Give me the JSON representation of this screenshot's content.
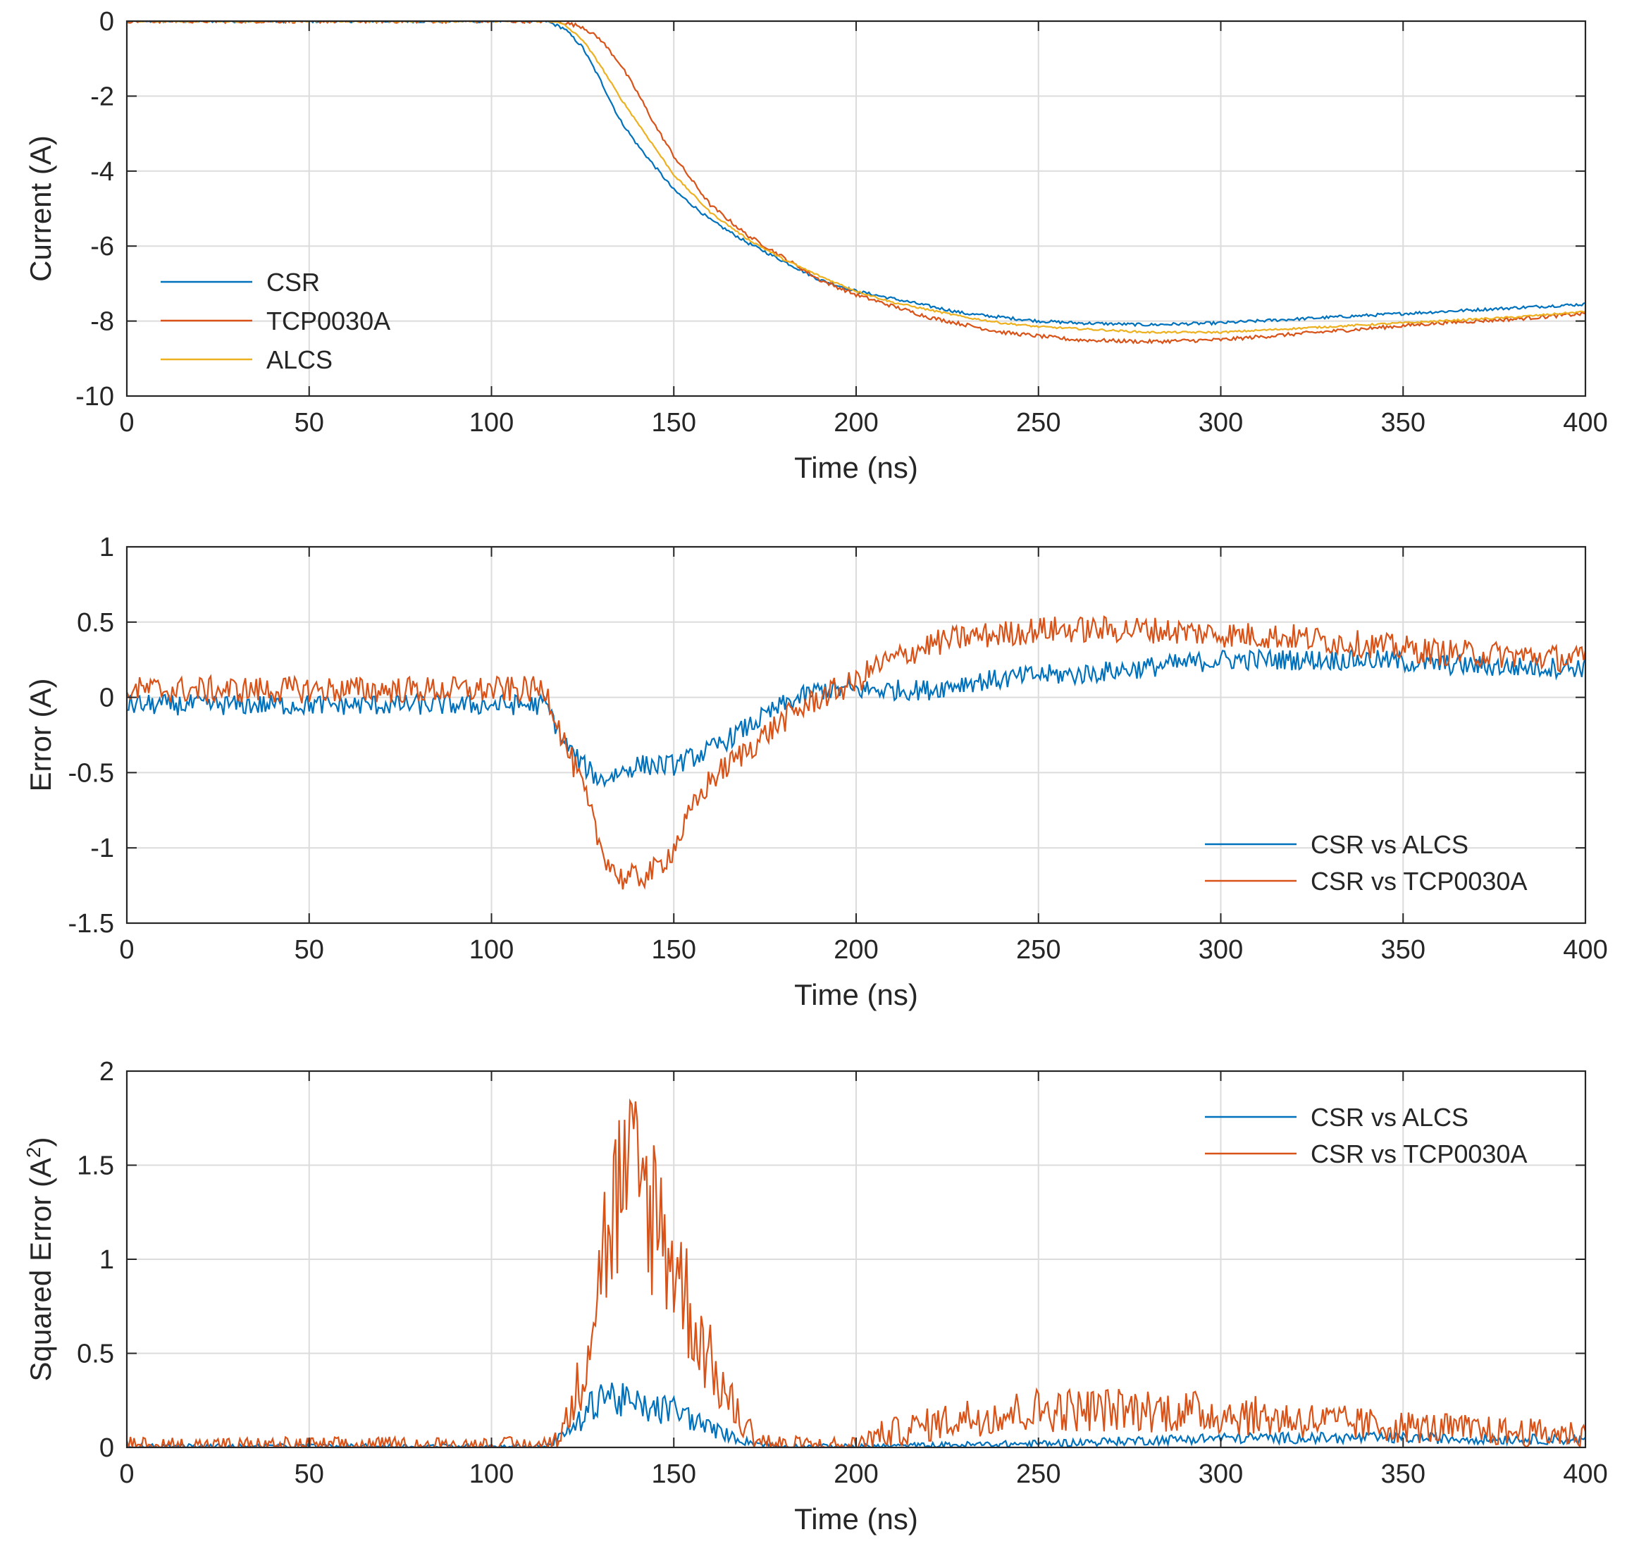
{
  "colors": {
    "blue": "#0072BD",
    "orange": "#D95319",
    "yellow": "#EDB120",
    "grid": "#dcdcdc",
    "axis": "#262626"
  },
  "chart_data": [
    {
      "type": "line",
      "xlabel": "Time (ns)",
      "ylabel": "Current (A)",
      "xlim": [
        0,
        400
      ],
      "ylim": [
        -10,
        0
      ],
      "xticks": [
        0,
        50,
        100,
        150,
        200,
        250,
        300,
        350,
        400
      ],
      "yticks": [
        0,
        -2,
        -4,
        -6,
        -8,
        -10
      ],
      "grid": true,
      "legend_position": "middle-left",
      "series": [
        {
          "name": "CSR",
          "color": "#0072BD",
          "x": [
            0,
            100,
            115,
            120,
            125,
            130,
            135,
            140,
            150,
            160,
            170,
            180,
            190,
            200,
            210,
            220,
            230,
            240,
            250,
            260,
            280,
            300,
            320,
            340,
            360,
            380,
            400
          ],
          "y": [
            0,
            0,
            0,
            -0.2,
            -0.7,
            -1.6,
            -2.6,
            -3.3,
            -4.5,
            -5.3,
            -5.9,
            -6.4,
            -6.9,
            -7.2,
            -7.4,
            -7.6,
            -7.8,
            -7.9,
            -8.0,
            -8.05,
            -8.1,
            -8.05,
            -7.95,
            -7.85,
            -7.75,
            -7.65,
            -7.55
          ]
        },
        {
          "name": "TCP0030A",
          "color": "#D95319",
          "x": [
            0,
            100,
            118,
            125,
            130,
            135,
            140,
            145,
            150,
            160,
            170,
            180,
            190,
            200,
            210,
            220,
            230,
            240,
            250,
            260,
            280,
            300,
            320,
            340,
            360,
            380,
            400
          ],
          "y": [
            0,
            0,
            0,
            -0.15,
            -0.5,
            -1.1,
            -1.9,
            -2.8,
            -3.6,
            -4.9,
            -5.7,
            -6.3,
            -6.9,
            -7.3,
            -7.6,
            -7.9,
            -8.1,
            -8.3,
            -8.4,
            -8.5,
            -8.55,
            -8.5,
            -8.35,
            -8.2,
            -8.05,
            -7.95,
            -7.8
          ]
        },
        {
          "name": "ALCS",
          "color": "#EDB120",
          "x": [
            0,
            100,
            117,
            120,
            125,
            130,
            135,
            140,
            145,
            150,
            160,
            170,
            180,
            190,
            200,
            210,
            220,
            230,
            240,
            250,
            260,
            280,
            300,
            320,
            340,
            360,
            380,
            400
          ],
          "y": [
            0,
            0,
            0,
            -0.1,
            -0.5,
            -1.2,
            -2.0,
            -2.7,
            -3.4,
            -4.1,
            -5.1,
            -5.8,
            -6.35,
            -6.8,
            -7.2,
            -7.5,
            -7.7,
            -7.9,
            -8.05,
            -8.15,
            -8.2,
            -8.3,
            -8.3,
            -8.2,
            -8.1,
            -8.0,
            -7.9,
            -7.75
          ]
        }
      ]
    },
    {
      "type": "line",
      "xlabel": "Time (ns)",
      "ylabel": "Error (A)",
      "xlim": [
        0,
        400
      ],
      "ylim": [
        -1.5,
        1
      ],
      "xticks": [
        0,
        50,
        100,
        150,
        200,
        250,
        300,
        350,
        400
      ],
      "yticks": [
        1,
        0.5,
        0,
        -0.5,
        -1,
        -1.5
      ],
      "grid": true,
      "legend_position": "bottom-right",
      "series": [
        {
          "name": "CSR vs ALCS",
          "color": "#0072BD",
          "x": [
            0,
            50,
            100,
            115,
            120,
            125,
            130,
            135,
            140,
            150,
            160,
            170,
            180,
            190,
            200,
            210,
            220,
            230,
            240,
            250,
            260,
            280,
            300,
            320,
            340,
            360,
            380,
            400
          ],
          "y": [
            -0.05,
            -0.05,
            -0.05,
            -0.05,
            -0.3,
            -0.45,
            -0.55,
            -0.5,
            -0.45,
            -0.45,
            -0.35,
            -0.2,
            -0.05,
            0.05,
            0.05,
            0.05,
            0.05,
            0.1,
            0.12,
            0.15,
            0.15,
            0.2,
            0.25,
            0.25,
            0.25,
            0.22,
            0.2,
            0.2
          ]
        },
        {
          "name": "CSR vs TCP0030A",
          "color": "#D95319",
          "x": [
            0,
            50,
            100,
            115,
            120,
            125,
            130,
            135,
            140,
            145,
            150,
            155,
            160,
            170,
            180,
            190,
            200,
            205,
            210,
            220,
            230,
            240,
            250,
            260,
            270,
            280,
            300,
            320,
            340,
            360,
            380,
            400
          ],
          "y": [
            0.05,
            0.05,
            0.05,
            0.05,
            -0.3,
            -0.6,
            -1.0,
            -1.2,
            -1.2,
            -1.15,
            -1.0,
            -0.75,
            -0.55,
            -0.35,
            -0.15,
            0.0,
            0.1,
            0.2,
            0.25,
            0.35,
            0.4,
            0.42,
            0.45,
            0.45,
            0.45,
            0.45,
            0.42,
            0.4,
            0.35,
            0.3,
            0.28,
            0.25
          ]
        }
      ]
    },
    {
      "type": "line",
      "xlabel": "Time (ns)",
      "ylabel": "Squared Error (A",
      "ylabel_superscript": "2",
      "ylabel_suffix": ")",
      "xlim": [
        0,
        400
      ],
      "ylim": [
        0,
        2
      ],
      "xticks": [
        0,
        50,
        100,
        150,
        200,
        250,
        300,
        350,
        400
      ],
      "yticks": [
        2,
        1.5,
        1,
        0.5,
        0
      ],
      "grid": true,
      "legend_position": "top-right",
      "series": [
        {
          "name": "CSR vs ALCS",
          "color": "#0072BD",
          "x": [
            0,
            50,
            100,
            115,
            120,
            125,
            130,
            135,
            140,
            145,
            150,
            155,
            160,
            170,
            180,
            200,
            250,
            300,
            350,
            400
          ],
          "y": [
            0.005,
            0.005,
            0.005,
            0.005,
            0.07,
            0.15,
            0.3,
            0.25,
            0.22,
            0.2,
            0.2,
            0.15,
            0.1,
            0.03,
            0.005,
            0.005,
            0.02,
            0.05,
            0.05,
            0.04
          ]
        },
        {
          "name": "CSR vs TCP0030A",
          "color": "#D95319",
          "x": [
            0,
            50,
            100,
            115,
            120,
            125,
            130,
            135,
            140,
            145,
            150,
            155,
            160,
            165,
            170,
            175,
            180,
            190,
            200,
            205,
            210,
            220,
            230,
            240,
            250,
            260,
            270,
            280,
            300,
            320,
            340,
            360,
            380,
            400
          ],
          "y": [
            0.005,
            0.005,
            0.005,
            0.005,
            0.1,
            0.4,
            1.0,
            1.35,
            1.4,
            1.25,
            1.0,
            0.7,
            0.45,
            0.25,
            0.1,
            0.03,
            0.01,
            0.005,
            0.01,
            0.06,
            0.08,
            0.12,
            0.16,
            0.18,
            0.2,
            0.2,
            0.2,
            0.2,
            0.18,
            0.15,
            0.12,
            0.1,
            0.08,
            0.07
          ]
        }
      ]
    }
  ]
}
